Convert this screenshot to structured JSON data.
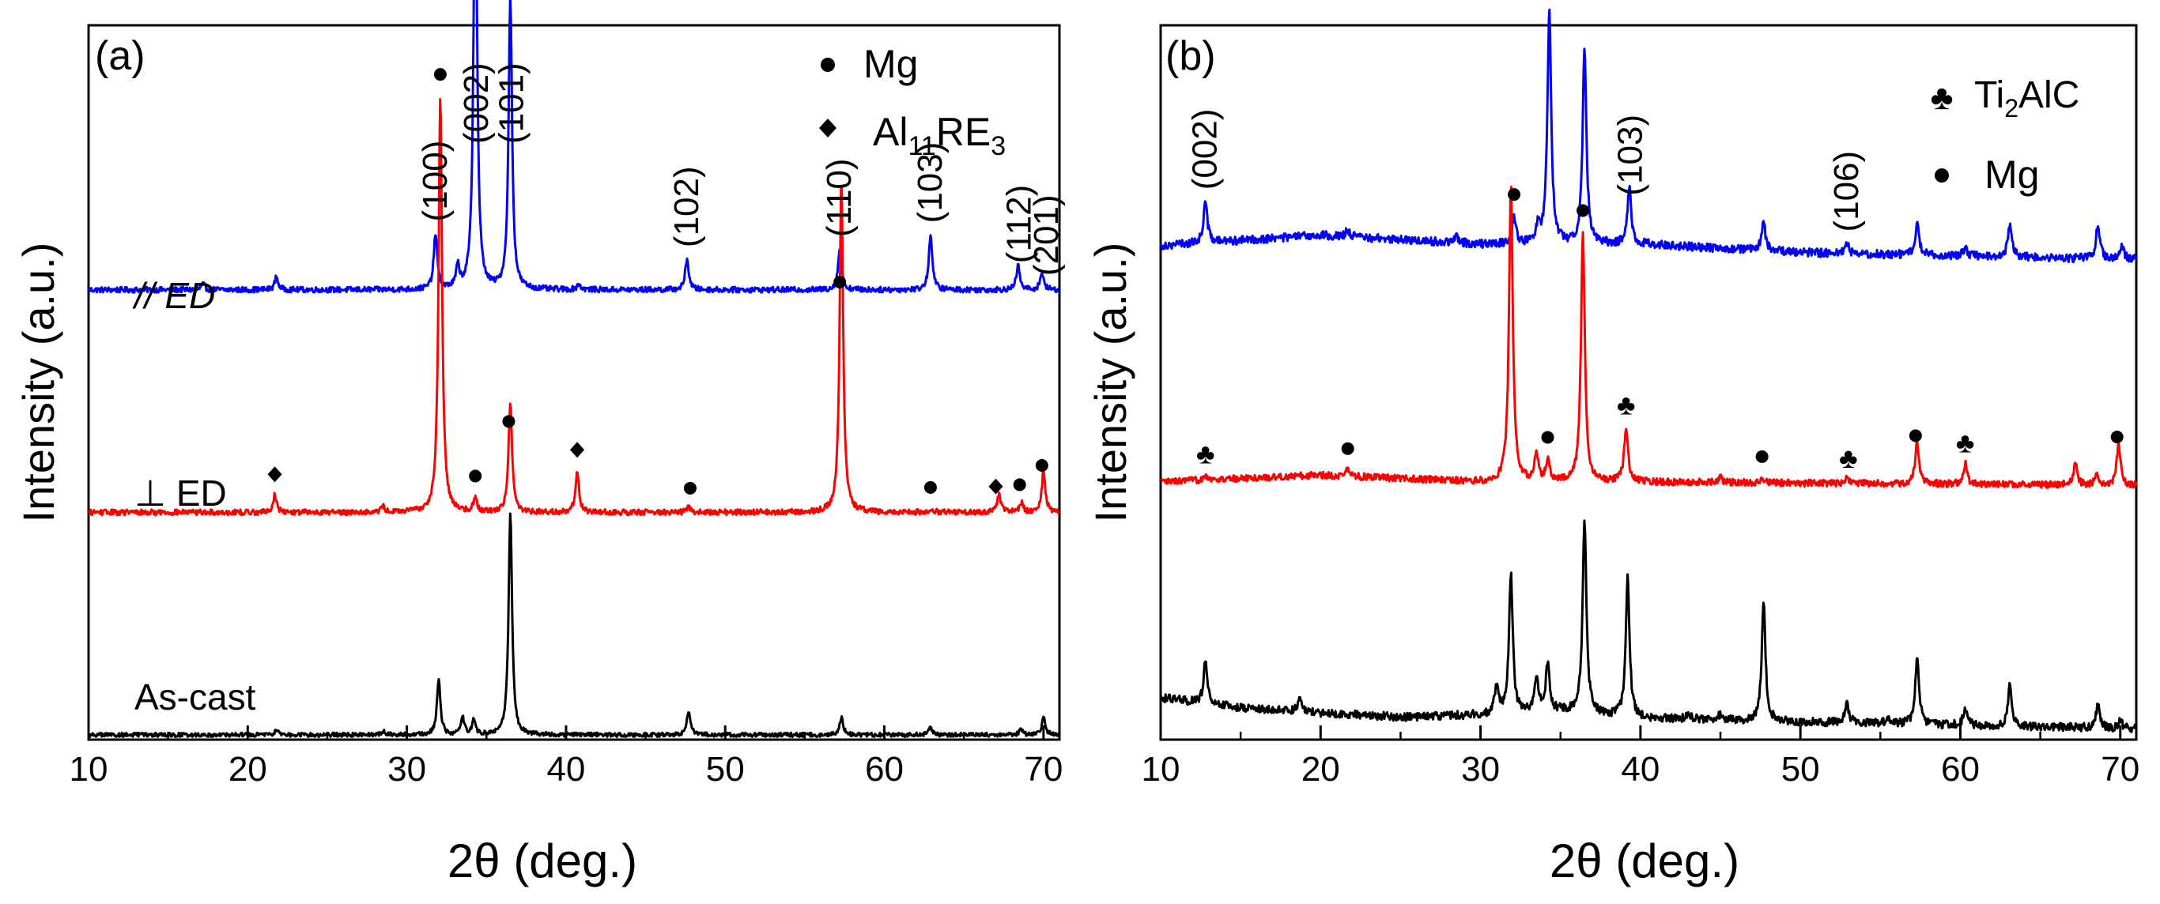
{
  "chart_data": [
    {
      "type": "line",
      "panel_label": "(a)",
      "xlabel": "2θ (deg.)",
      "ylabel": "Intensity (a.u.)",
      "xlim": [
        10,
        71
      ],
      "x_ticks": [
        10,
        20,
        30,
        40,
        50,
        60,
        70
      ],
      "y_ticks": "none (arbitrary units)",
      "legend": [
        {
          "symbol": "circle",
          "label_main": "Mg",
          "label_sub": "",
          "label_tail": "",
          "label_sub2": ""
        },
        {
          "symbol": "diamond",
          "label_main": "Al",
          "label_sub": "11",
          "label_tail": "RE",
          "label_sub2": "3"
        }
      ],
      "legend_position": "top-right",
      "series": [
        {
          "name": "// ED",
          "color": "#0000ff",
          "offset": 0.64,
          "baseline_noise": 0.004,
          "peaks": [
            [
              17.2,
              0.008
            ],
            [
              21.8,
              0.018
            ],
            [
              31.8,
              0.08
            ],
            [
              33.2,
              0.03
            ],
            [
              34.3,
              0.65
            ],
            [
              36.5,
              0.42
            ],
            [
              40.8,
              0.008
            ],
            [
              47.6,
              0.045
            ],
            [
              57.2,
              0.06
            ],
            [
              62.9,
              0.08
            ],
            [
              68.4,
              0.035
            ],
            [
              69.9,
              0.025
            ]
          ],
          "peak_labels": [
            {
              "x": 31.8,
              "text": "(100)"
            },
            {
              "x": 34.4,
              "text": "(002)"
            },
            {
              "x": 36.6,
              "text": "(101)"
            },
            {
              "x": 47.6,
              "text": "(102)"
            },
            {
              "x": 57.2,
              "text": "(110)"
            },
            {
              "x": 62.9,
              "text": "(103)"
            },
            {
              "x": 68.5,
              "text": "(112)"
            },
            {
              "x": 70.2,
              "text": "(201)"
            }
          ]
        },
        {
          "name": "⊥ ED",
          "color": "#ff0000",
          "offset": 0.32,
          "baseline_noise": 0.004,
          "peaks": [
            [
              21.7,
              0.025
            ],
            [
              28.5,
              0.008
            ],
            [
              32.1,
              0.6
            ],
            [
              34.3,
              0.02
            ],
            [
              36.5,
              0.16
            ],
            [
              40.7,
              0.06
            ],
            [
              47.7,
              0.008
            ],
            [
              57.3,
              0.48
            ],
            [
              62.9,
              0.006
            ],
            [
              67.2,
              0.025
            ],
            [
              68.6,
              0.015
            ],
            [
              70.0,
              0.06
            ]
          ],
          "markers": [
            {
              "x": 21.7,
              "symbol": "diamond"
            },
            {
              "x": 32.1,
              "symbol": "circle"
            },
            {
              "x": 34.3,
              "symbol": "circle"
            },
            {
              "x": 36.4,
              "symbol": "circle"
            },
            {
              "x": 40.7,
              "symbol": "diamond"
            },
            {
              "x": 47.8,
              "symbol": "circle"
            },
            {
              "x": 57.2,
              "symbol": "circle"
            },
            {
              "x": 62.9,
              "symbol": "circle"
            },
            {
              "x": 67.0,
              "symbol": "diamond"
            },
            {
              "x": 68.5,
              "symbol": "circle"
            },
            {
              "x": 69.9,
              "symbol": "circle"
            }
          ]
        },
        {
          "name": "As-cast",
          "color": "#000000",
          "offset": 0.0,
          "baseline_noise": 0.003,
          "peaks": [
            [
              21.8,
              0.008
            ],
            [
              28.5,
              0.006
            ],
            [
              32.0,
              0.08
            ],
            [
              33.5,
              0.025
            ],
            [
              34.2,
              0.02
            ],
            [
              36.5,
              0.32
            ],
            [
              47.7,
              0.035
            ],
            [
              57.3,
              0.025
            ],
            [
              62.9,
              0.01
            ],
            [
              68.6,
              0.008
            ],
            [
              70.0,
              0.025
            ]
          ]
        }
      ]
    },
    {
      "type": "line",
      "panel_label": "(b)",
      "xlabel": "2θ (deg.)",
      "ylabel": "Intensity (a.u.)",
      "xlim": [
        10,
        71
      ],
      "x_ticks": [
        10,
        20,
        30,
        40,
        50,
        60,
        70
      ],
      "y_ticks": "none (arbitrary units)",
      "legend": [
        {
          "symbol": "club",
          "label_main": "Ti",
          "label_sub": "2",
          "label_tail": "AlC",
          "label_sub2": ""
        },
        {
          "symbol": "circle",
          "label_main": "Mg",
          "label_sub": "",
          "label_tail": "",
          "label_sub2": ""
        }
      ],
      "legend_position": "top-right",
      "series": [
        {
          "name": "top (blue)",
          "color": "#0000ff",
          "offset": 0.68,
          "baseline_noise": 0.006,
          "background": [
            [
              10,
              0.01
            ],
            [
              20,
              0.025
            ],
            [
              30,
              0.012
            ],
            [
              40,
              0.012
            ],
            [
              50,
              0.0
            ],
            [
              60,
              -0.005
            ],
            [
              71,
              -0.01
            ]
          ],
          "peaks": [
            [
              12.8,
              0.06
            ],
            [
              21.7,
              0.01
            ],
            [
              28.5,
              0.008
            ],
            [
              32.1,
              0.04
            ],
            [
              33.6,
              0.025
            ],
            [
              34.3,
              0.34
            ],
            [
              36.5,
              0.28
            ],
            [
              39.3,
              0.08
            ],
            [
              47.7,
              0.04
            ],
            [
              52.9,
              0.015
            ],
            [
              57.3,
              0.045
            ],
            [
              60.3,
              0.012
            ],
            [
              63.1,
              0.05
            ],
            [
              68.6,
              0.05
            ],
            [
              70.1,
              0.02
            ]
          ],
          "peak_labels": [
            {
              "x": 12.8,
              "text": "(002)"
            },
            {
              "x": 39.4,
              "text": "(103)"
            },
            {
              "x": 52.9,
              "text": "(106)"
            }
          ],
          "markers": [
            {
              "x": 32.1,
              "symbol": "circle"
            }
          ]
        },
        {
          "name": "middle (red)",
          "color": "#ff0000",
          "offset": 0.35,
          "baseline_noise": 0.005,
          "background": [
            [
              10,
              0.0
            ],
            [
              20,
              0.01
            ],
            [
              30,
              0.0
            ],
            [
              40,
              0.0
            ],
            [
              71,
              -0.005
            ]
          ],
          "peaks": [
            [
              12.8,
              0.008
            ],
            [
              21.7,
              0.01
            ],
            [
              31.9,
              0.43
            ],
            [
              33.5,
              0.04
            ],
            [
              34.2,
              0.03
            ],
            [
              36.4,
              0.36
            ],
            [
              39.1,
              0.08
            ],
            [
              45.0,
              0.008
            ],
            [
              47.6,
              0.008
            ],
            [
              52.9,
              0.01
            ],
            [
              57.3,
              0.06
            ],
            [
              60.3,
              0.03
            ],
            [
              67.2,
              0.03
            ],
            [
              68.5,
              0.015
            ],
            [
              69.9,
              0.06
            ]
          ],
          "markers": [
            {
              "x": 12.8,
              "symbol": "club"
            },
            {
              "x": 21.7,
              "symbol": "circle"
            },
            {
              "x": 34.2,
              "symbol": "circle"
            },
            {
              "x": 36.4,
              "symbol": "circle"
            },
            {
              "x": 39.1,
              "symbol": "club"
            },
            {
              "x": 47.6,
              "symbol": "circle"
            },
            {
              "x": 53.0,
              "symbol": "club"
            },
            {
              "x": 57.2,
              "symbol": "circle"
            },
            {
              "x": 60.3,
              "symbol": "club"
            },
            {
              "x": 69.8,
              "symbol": "circle"
            }
          ]
        },
        {
          "name": "bottom (black)",
          "color": "#000000",
          "offset": 0.0,
          "baseline_noise": 0.006,
          "background": [
            [
              10,
              0.04
            ],
            [
              15,
              0.025
            ],
            [
              20,
              0.018
            ],
            [
              25,
              0.012
            ],
            [
              30,
              0.015
            ],
            [
              35,
              0.02
            ],
            [
              40,
              0.01
            ],
            [
              50,
              0.005
            ],
            [
              60,
              0.0
            ],
            [
              71,
              -0.005
            ]
          ],
          "peaks": [
            [
              12.8,
              0.06
            ],
            [
              18.7,
              0.02
            ],
            [
              31.0,
              0.04
            ],
            [
              31.9,
              0.2
            ],
            [
              33.5,
              0.05
            ],
            [
              34.2,
              0.07
            ],
            [
              36.5,
              0.28
            ],
            [
              39.2,
              0.2
            ],
            [
              43.0,
              0.01
            ],
            [
              45.0,
              0.008
            ],
            [
              47.7,
              0.17
            ],
            [
              52.9,
              0.03
            ],
            [
              55.5,
              0.01
            ],
            [
              57.3,
              0.1
            ],
            [
              60.3,
              0.025
            ],
            [
              63.1,
              0.06
            ],
            [
              68.6,
              0.035
            ],
            [
              70.0,
              0.012
            ]
          ]
        }
      ]
    }
  ]
}
